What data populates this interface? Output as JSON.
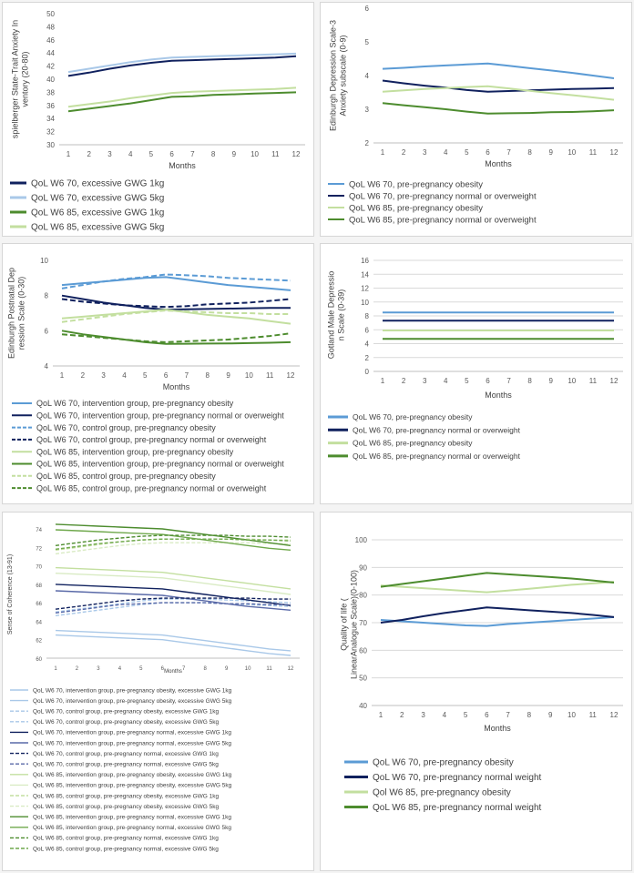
{
  "colors": {
    "lightblue": "#5b9bd5",
    "paleblue": "#a9c8e8",
    "navy": "#10215e",
    "green": "#4d8c2e",
    "lightgreen": "#c3df9f",
    "grid": "#d9d9d9"
  },
  "chart_data": [
    {
      "type": "line",
      "x": [
        1,
        2,
        3,
        4,
        5,
        6,
        7,
        8,
        9,
        10,
        11,
        12
      ],
      "xlabel": "Months",
      "ylabel": "spielberger State-Trait Anxiety Inventory (20-80)",
      "ylim": [
        30,
        50
      ],
      "yticks": [
        30,
        32,
        34,
        36,
        38,
        40,
        42,
        44,
        46,
        48,
        50
      ],
      "grid": false,
      "legend_position": "bottom",
      "series": [
        {
          "name": "QoL W6 70, excessive GWG 1kg",
          "color": "navy",
          "dash": false,
          "values": [
            40.5,
            41.0,
            41.6,
            42.1,
            42.5,
            42.8,
            42.9,
            43.0,
            43.1,
            43.2,
            43.3,
            43.5
          ]
        },
        {
          "name": "QoL W6 70, excessive GWG 5kg",
          "color": "paleblue",
          "dash": false,
          "values": [
            41.1,
            41.6,
            42.1,
            42.6,
            43.0,
            43.3,
            43.4,
            43.5,
            43.6,
            43.7,
            43.8,
            43.9
          ]
        },
        {
          "name": "QoL W6 85, excessive GWG 1kg",
          "color": "green",
          "dash": false,
          "values": [
            35.1,
            35.5,
            35.9,
            36.3,
            36.8,
            37.3,
            37.4,
            37.6,
            37.7,
            37.8,
            37.9,
            38.0
          ]
        },
        {
          "name": "QoL W6 85, excessive GWG 5kg",
          "color": "lightgreen",
          "dash": false,
          "values": [
            35.8,
            36.2,
            36.6,
            37.1,
            37.5,
            37.9,
            38.1,
            38.2,
            38.3,
            38.4,
            38.5,
            38.7
          ]
        }
      ]
    },
    {
      "type": "line",
      "x": [
        1,
        2,
        3,
        4,
        5,
        6,
        7,
        8,
        9,
        10,
        11,
        12
      ],
      "xlabel": "Months",
      "ylabel": "Edinburgh Depression Scale-3 Anxiety subscale (0-9)",
      "ylim": [
        2,
        6
      ],
      "yticks": [
        2,
        3,
        4,
        5,
        6
      ],
      "grid": false,
      "legend_position": "bottom",
      "series": [
        {
          "name": "QoL W6 70, pre-pregnancy obesity",
          "color": "lightblue",
          "dash": false,
          "values": [
            4.2,
            4.23,
            4.27,
            4.3,
            4.33,
            4.36,
            4.29,
            4.22,
            4.15,
            4.08,
            4.0,
            3.92
          ]
        },
        {
          "name": "QoL W6 70, pre-pregnancy normal or overweight",
          "color": "navy",
          "dash": false,
          "values": [
            3.85,
            3.77,
            3.7,
            3.64,
            3.57,
            3.52,
            3.54,
            3.56,
            3.58,
            3.6,
            3.61,
            3.63
          ]
        },
        {
          "name": "QoL W6 85, pre-pregnancy obesity",
          "color": "lightgreen",
          "dash": false,
          "values": [
            3.52,
            3.56,
            3.6,
            3.63,
            3.66,
            3.68,
            3.62,
            3.55,
            3.48,
            3.42,
            3.35,
            3.28
          ]
        },
        {
          "name": "QoL W6 85, pre-pregnancy normal or overweight",
          "color": "green",
          "dash": false,
          "values": [
            3.18,
            3.12,
            3.06,
            3.0,
            2.93,
            2.87,
            2.88,
            2.89,
            2.91,
            2.92,
            2.94,
            2.97
          ]
        }
      ]
    },
    {
      "type": "line",
      "x": [
        1,
        2,
        3,
        4,
        5,
        6,
        7,
        8,
        9,
        10,
        11,
        12
      ],
      "xlabel": "Months",
      "ylabel": "Edinburgh Postnatal Depression Scale (0-30)",
      "ylim": [
        4,
        10
      ],
      "yticks": [
        4,
        6,
        8,
        10
      ],
      "grid": false,
      "legend_position": "bottom",
      "series": [
        {
          "name": "QoL W6 70, intervention group, pre-pregnancy obesity",
          "color": "lightblue",
          "dash": false,
          "values": [
            8.6,
            8.7,
            8.8,
            8.9,
            9.0,
            9.05,
            8.9,
            8.75,
            8.6,
            8.5,
            8.4,
            8.3
          ]
        },
        {
          "name": "QoL W6 70, intervention group, pre-pregnancy normal or overweight",
          "color": "navy",
          "dash": false,
          "values": [
            8.0,
            7.8,
            7.6,
            7.45,
            7.3,
            7.2,
            7.22,
            7.24,
            7.26,
            7.28,
            7.3,
            7.3
          ]
        },
        {
          "name": "QoL W6 70, control group, pre-pregnancy obesity",
          "color": "lightblue",
          "dash": true,
          "values": [
            8.4,
            8.6,
            8.8,
            8.95,
            9.05,
            9.2,
            9.15,
            9.1,
            9.0,
            8.95,
            8.9,
            8.85
          ]
        },
        {
          "name": "QoL W6 70, control group, pre-pregnancy normal or overweight",
          "color": "navy",
          "dash": true,
          "values": [
            7.8,
            7.65,
            7.55,
            7.45,
            7.4,
            7.35,
            7.4,
            7.5,
            7.55,
            7.6,
            7.7,
            7.8
          ]
        },
        {
          "name": "QoL W6 85, intervention group, pre-pregnancy obesity",
          "color": "lightgreen",
          "dash": false,
          "values": [
            6.7,
            6.8,
            6.9,
            7.0,
            7.1,
            7.2,
            7.05,
            6.9,
            6.8,
            6.7,
            6.55,
            6.4
          ]
        },
        {
          "name": "QoL W6 85, intervention group, pre-pregnancy normal or overweight",
          "color": "green",
          "dash": false,
          "values": [
            6.0,
            5.8,
            5.65,
            5.5,
            5.35,
            5.25,
            5.26,
            5.27,
            5.28,
            5.3,
            5.32,
            5.35
          ]
        },
        {
          "name": "QoL W6 85, control group, pre-pregnancy obesity",
          "color": "lightgreen",
          "dash": true,
          "values": [
            6.5,
            6.65,
            6.8,
            6.95,
            7.05,
            7.15,
            7.1,
            7.05,
            7.0,
            7.0,
            6.95,
            6.95
          ]
        },
        {
          "name": "QoL W6 85, control group, pre-pregnancy normal or overweight",
          "color": "green",
          "dash": true,
          "values": [
            5.8,
            5.7,
            5.6,
            5.5,
            5.4,
            5.35,
            5.4,
            5.45,
            5.5,
            5.6,
            5.7,
            5.85
          ]
        }
      ]
    },
    {
      "type": "line",
      "x": [
        1,
        2,
        3,
        4,
        5,
        6,
        7,
        8,
        9,
        10,
        11,
        12
      ],
      "xlabel": "Months",
      "ylabel": "Gotland Male Depression Scale (0-39)",
      "ylim": [
        0,
        16
      ],
      "yticks": [
        0,
        2,
        4,
        6,
        8,
        10,
        12,
        14,
        16
      ],
      "grid": true,
      "legend_position": "bottom",
      "series": [
        {
          "name": "QoL W6 70, pre-pregnancy obesity",
          "color": "lightblue",
          "dash": false,
          "values": [
            8.5,
            8.5,
            8.5,
            8.5,
            8.5,
            8.5,
            8.5,
            8.5,
            8.5,
            8.5,
            8.5,
            8.5
          ]
        },
        {
          "name": "QoL W6 70, pre-pregnancy normal or overweight",
          "color": "navy",
          "dash": false,
          "values": [
            7.3,
            7.3,
            7.3,
            7.3,
            7.3,
            7.3,
            7.3,
            7.3,
            7.3,
            7.3,
            7.3,
            7.3
          ]
        },
        {
          "name": "QoL W6 85, pre-pregnancy obesity",
          "color": "lightgreen",
          "dash": false,
          "values": [
            5.9,
            5.9,
            5.9,
            5.9,
            5.9,
            5.9,
            5.9,
            5.9,
            5.9,
            5.9,
            5.9,
            5.9
          ]
        },
        {
          "name": "QoL W6 85, pre-pregnancy normal or overweight",
          "color": "green",
          "dash": false,
          "values": [
            4.7,
            4.7,
            4.7,
            4.7,
            4.7,
            4.7,
            4.7,
            4.7,
            4.7,
            4.7,
            4.7,
            4.7
          ]
        }
      ]
    },
    {
      "type": "line",
      "x": [
        1,
        2,
        3,
        4,
        5,
        6,
        7,
        8,
        9,
        10,
        11,
        12
      ],
      "xlabel": "Months",
      "ylabel": "Sense of Coherence (13-91)",
      "ylim": [
        60,
        74
      ],
      "yticks": [
        60,
        62,
        64,
        66,
        68,
        70,
        72,
        74
      ],
      "grid": false,
      "legend_position": "bottom",
      "series": [
        {
          "name": "QoL W6 70, intervention group, pre-pregnancy obesity, excessive GWG 1kg",
          "color": "paleblue",
          "dash": false,
          "values": [
            63.0,
            62.9,
            62.8,
            62.7,
            62.6,
            62.5,
            62.2,
            61.9,
            61.6,
            61.3,
            61.0,
            60.8
          ]
        },
        {
          "name": "QoL W6 70, intervention group, pre-pregnancy obesity, excessive GWG 5kg",
          "color": "paleblue",
          "dash": false,
          "values": [
            62.5,
            62.4,
            62.3,
            62.2,
            62.1,
            62.0,
            61.7,
            61.4,
            61.1,
            60.8,
            60.5,
            60.3
          ]
        },
        {
          "name": "QoL W6 70, control group, pre-pregnancy obesity, excessive GWG 1kg",
          "color": "paleblue",
          "dash": true,
          "values": [
            65.0,
            65.3,
            65.6,
            65.9,
            66.2,
            66.4,
            66.4,
            66.4,
            66.3,
            66.2,
            66.1,
            66.0
          ]
        },
        {
          "name": "QoL W6 70, control group, pre-pregnancy obesity, excessive GWG 5kg",
          "color": "paleblue",
          "dash": true,
          "values": [
            64.6,
            64.9,
            65.2,
            65.5,
            65.8,
            66.0,
            66.0,
            66.0,
            65.9,
            65.8,
            65.7,
            65.6
          ]
        },
        {
          "name": "QoL W6 70, intervention group, pre-pregnancy normal, excessive GWG 1kg",
          "color": "navy",
          "dash": false,
          "values": [
            68.0,
            67.9,
            67.8,
            67.7,
            67.6,
            67.5,
            67.2,
            66.9,
            66.6,
            66.3,
            66.0,
            65.7
          ]
        },
        {
          "name": "QoL W6 70, intervention group, pre-pregnancy normal, excessive GWG 5kg",
          "color": "#5a6aa8",
          "dash": false,
          "values": [
            67.3,
            67.2,
            67.1,
            67.0,
            66.9,
            66.8,
            66.5,
            66.2,
            65.9,
            65.6,
            65.4,
            65.2
          ]
        },
        {
          "name": "QoL W6 70, control group, pre-pregnancy normal, excessive GWG 1kg",
          "color": "navy",
          "dash": true,
          "values": [
            65.3,
            65.6,
            65.9,
            66.2,
            66.4,
            66.5,
            66.5,
            66.5,
            66.5,
            66.5,
            66.4,
            66.4
          ]
        },
        {
          "name": "QoL W6 70, control group, pre-pregnancy normal, excessive GWG 5kg",
          "color": "#5a6aa8",
          "dash": true,
          "values": [
            64.9,
            65.2,
            65.5,
            65.8,
            65.9,
            66.0,
            66.0,
            66.0,
            65.9,
            65.9,
            65.8,
            65.8
          ]
        },
        {
          "name": "QoL W6 85, intervention group, pre-pregnancy obesity, excessive GWG 1kg",
          "color": "lightgreen",
          "dash": false,
          "values": [
            69.8,
            69.7,
            69.6,
            69.5,
            69.4,
            69.3,
            69.0,
            68.7,
            68.4,
            68.1,
            67.8,
            67.5
          ]
        },
        {
          "name": "QoL W6 85, intervention group, pre-pregnancy obesity, excessive GWG 5kg",
          "color": "#d9ebc4",
          "dash": false,
          "values": [
            69.2,
            69.1,
            69.0,
            68.9,
            68.8,
            68.7,
            68.4,
            68.1,
            67.8,
            67.5,
            67.2,
            66.9
          ]
        },
        {
          "name": "QoL W6 85, control group, pre-pregnancy obesity, excessive GWG 1kg",
          "color": "lightgreen",
          "dash": true,
          "values": [
            71.7,
            72.0,
            72.3,
            72.6,
            72.8,
            72.9,
            72.9,
            72.9,
            72.9,
            72.9,
            72.8,
            72.8
          ]
        },
        {
          "name": "QoL W6 85, control group, pre-pregnancy obesity, excessive GWG 5kg",
          "color": "#d9ebc4",
          "dash": true,
          "values": [
            71.3,
            71.6,
            71.9,
            72.2,
            72.4,
            72.5,
            72.5,
            72.5,
            72.5,
            72.5,
            72.4,
            72.4
          ]
        },
        {
          "name": "QoL W6 85, intervention group, pre-pregnancy normal, excessive GWG 1kg",
          "color": "green",
          "dash": false,
          "values": [
            74.5,
            74.4,
            74.3,
            74.2,
            74.1,
            74.0,
            73.7,
            73.4,
            73.1,
            72.8,
            72.5,
            72.2
          ]
        },
        {
          "name": "QoL W6 85, intervention group, pre-pregnancy normal, excessive GWG 5kg",
          "color": "#6fa84c",
          "dash": false,
          "values": [
            73.9,
            73.8,
            73.7,
            73.6,
            73.5,
            73.4,
            73.1,
            72.8,
            72.5,
            72.2,
            71.9,
            71.7
          ]
        },
        {
          "name": "QoL W6 85, control group, pre-pregnancy normal, excessive GWG 1kg",
          "color": "green",
          "dash": true,
          "values": [
            72.2,
            72.5,
            72.8,
            73.0,
            73.2,
            73.3,
            73.3,
            73.3,
            73.3,
            73.2,
            73.2,
            73.1
          ]
        },
        {
          "name": "QoL W6 85, control group, pre-pregnancy normal, excessive GWG 5kg",
          "color": "#6fa84c",
          "dash": true,
          "values": [
            71.8,
            72.1,
            72.4,
            72.6,
            72.8,
            72.9,
            72.9,
            72.9,
            72.9,
            72.8,
            72.8,
            72.7
          ]
        }
      ]
    },
    {
      "type": "line",
      "x": [
        1,
        2,
        3,
        4,
        5,
        6,
        7,
        8,
        9,
        10,
        11,
        12
      ],
      "xlabel": "Months",
      "ylabel": "Quality of life (LinearAnalogue Scale)(0-100)",
      "ylim": [
        40,
        100
      ],
      "yticks": [
        40,
        50,
        60,
        70,
        80,
        90,
        100
      ],
      "grid": true,
      "legend_position": "bottom",
      "series": [
        {
          "name": "QoL W6 70, pre-pregnancy obesity",
          "color": "lightblue",
          "dash": false,
          "values": [
            71.0,
            70.5,
            70.0,
            69.5,
            69.0,
            68.8,
            69.5,
            70.0,
            70.5,
            71.0,
            71.5,
            72.0
          ]
        },
        {
          "name": "QoL W6 70, pre-pregnancy normal weight",
          "color": "navy",
          "dash": false,
          "values": [
            70.0,
            71.0,
            72.3,
            73.5,
            74.5,
            75.5,
            75.0,
            74.5,
            74.0,
            73.5,
            72.8,
            72.0
          ]
        },
        {
          "name": "Qol W6 85, pre-pregnancy obesity",
          "color": "lightgreen",
          "dash": false,
          "values": [
            83.5,
            83.0,
            82.5,
            82.0,
            81.5,
            81.0,
            81.6,
            82.3,
            83.0,
            83.7,
            84.2,
            84.8
          ]
        },
        {
          "name": "QoL W6 85, pre-pregnancy normal weight",
          "color": "green",
          "dash": false,
          "values": [
            83.0,
            84.0,
            85.0,
            86.0,
            87.0,
            88.0,
            87.5,
            87.0,
            86.5,
            86.0,
            85.3,
            84.5
          ]
        }
      ]
    }
  ]
}
